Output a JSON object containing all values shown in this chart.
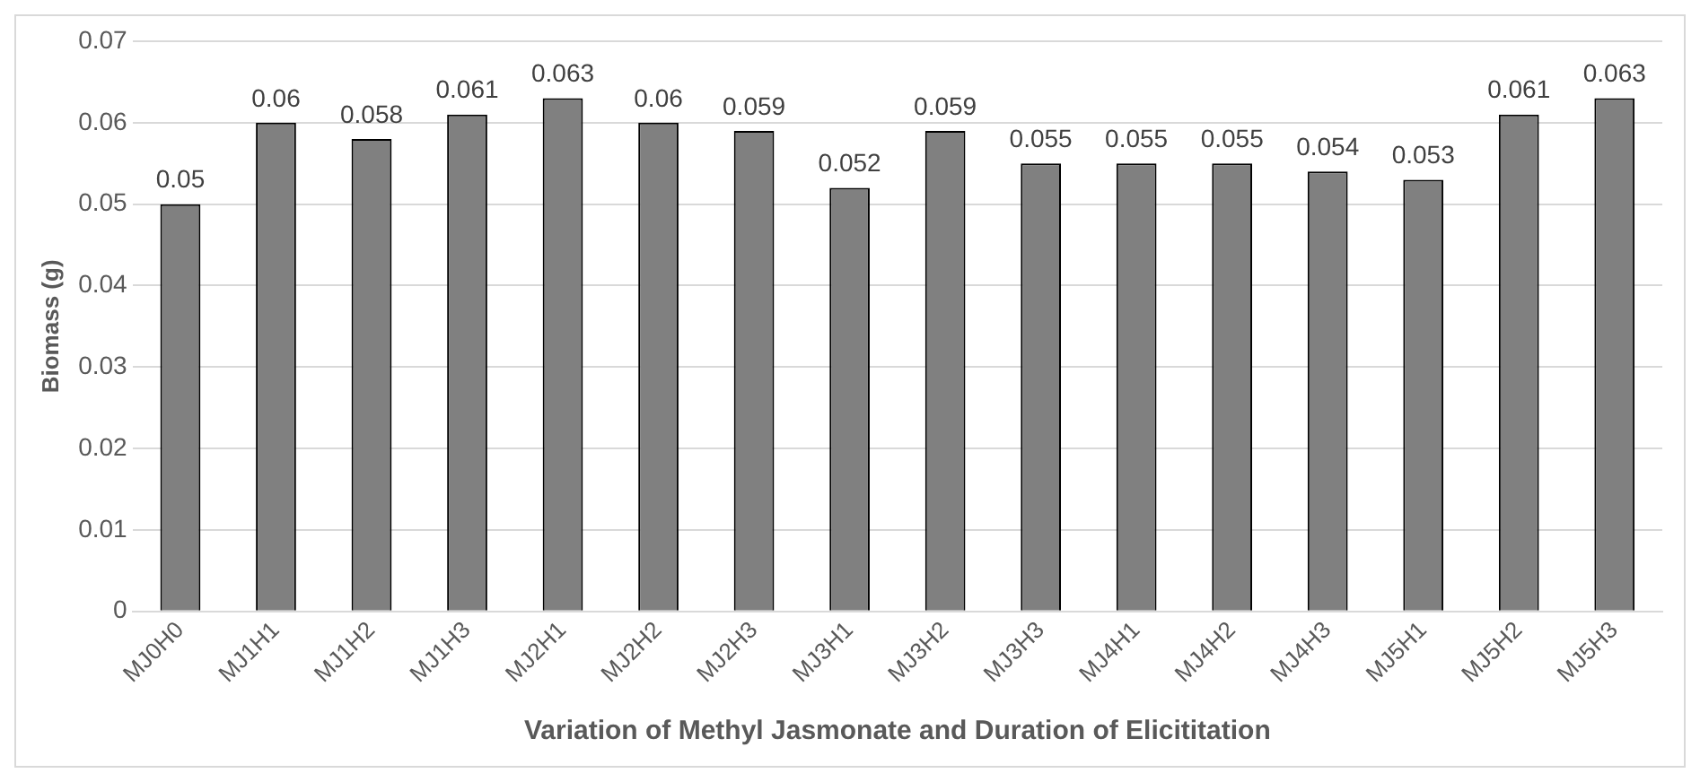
{
  "chart_data": {
    "type": "bar",
    "xlabel": "Variation of Methyl Jasmonate and Duration of Elicititation",
    "ylabel": "Biomass (g)",
    "categories": [
      "MJ0H0",
      "MJ1H1",
      "MJ1H2",
      "MJ1H3",
      "MJ2H1",
      "MJ2H2",
      "MJ2H3",
      "MJ3H1",
      "MJ3H2",
      "MJ3H3",
      "MJ4H1",
      "MJ4H2",
      "MJ4H3",
      "MJ5H1",
      "MJ5H2",
      "MJ5H3"
    ],
    "values": [
      0.05,
      0.06,
      0.058,
      0.061,
      0.063,
      0.06,
      0.059,
      0.052,
      0.059,
      0.055,
      0.055,
      0.055,
      0.054,
      0.053,
      0.061,
      0.063
    ],
    "color": "#808080",
    "ylim": [
      0,
      0.07
    ],
    "yticks": [
      0,
      0.01,
      0.02,
      0.03,
      0.04,
      0.05,
      0.06,
      0.07
    ],
    "grid": "y",
    "data_labels": true,
    "legend": false
  }
}
